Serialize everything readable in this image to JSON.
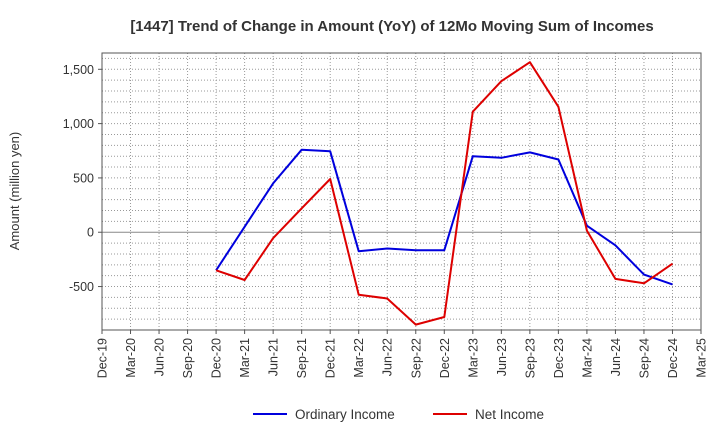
{
  "chart_data": {
    "type": "line",
    "title": "[1447]  Trend of Change in Amount (YoY) of 12Mo Moving Sum of Incomes",
    "xlabel": "",
    "ylabel": "Amount (million yen)",
    "ylim": [
      -900,
      1650
    ],
    "yticks": [
      -500,
      0,
      500,
      1000,
      1500
    ],
    "ytick_labels": [
      "-500",
      "0",
      "500",
      "1,000",
      "1,500"
    ],
    "categories": [
      "Dec-19",
      "Mar-20",
      "Jun-20",
      "Sep-20",
      "Dec-20",
      "Mar-21",
      "Jun-21",
      "Sep-21",
      "Dec-21",
      "Mar-22",
      "Jun-22",
      "Sep-22",
      "Dec-22",
      "Mar-23",
      "Jun-23",
      "Sep-23",
      "Dec-23",
      "Mar-24",
      "Jun-24",
      "Sep-24",
      "Dec-24",
      "Mar-25"
    ],
    "grid": true,
    "legend_position": "bottom",
    "series": [
      {
        "name": "Ordinary Income",
        "color": "#0000dd",
        "values": [
          null,
          null,
          null,
          null,
          -350,
          50,
          450,
          760,
          745,
          -175,
          -150,
          -165,
          -165,
          700,
          685,
          735,
          670,
          60,
          -120,
          -390,
          -480,
          null
        ]
      },
      {
        "name": "Net Income",
        "color": "#dd0000",
        "values": [
          null,
          null,
          null,
          null,
          -350,
          -440,
          -55,
          220,
          490,
          -575,
          -610,
          -850,
          -780,
          1110,
          1390,
          1565,
          1155,
          15,
          -430,
          -470,
          -290,
          null
        ]
      }
    ]
  }
}
